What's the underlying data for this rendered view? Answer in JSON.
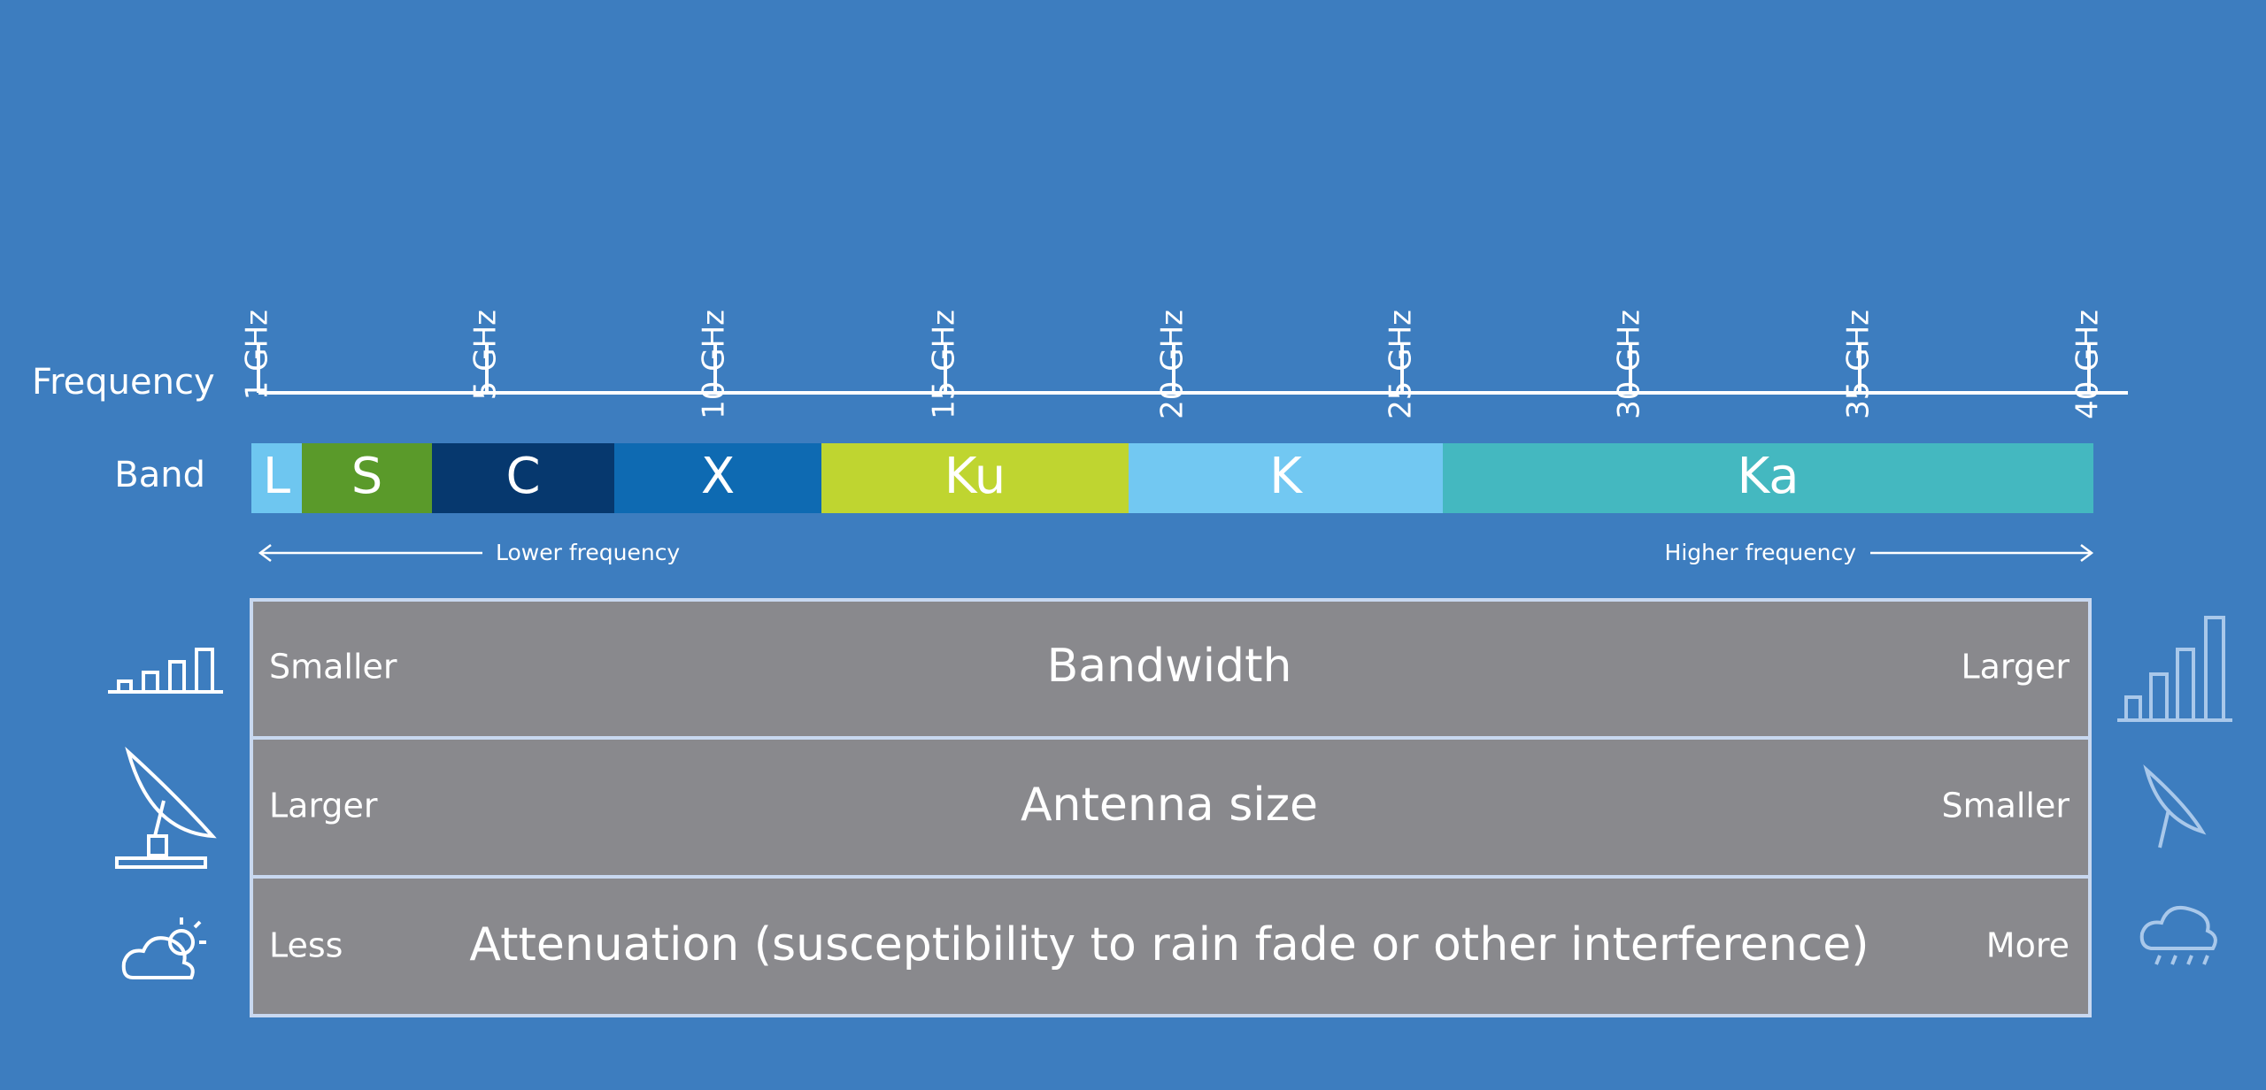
{
  "axis": {
    "label": "Frequency",
    "ticks": [
      "1 GHz",
      "5 GHz",
      "10 GHz",
      "15 GHz",
      "20 GHz",
      "25 GHz",
      "30 GHz",
      "35 GHz",
      "40 GHz"
    ]
  },
  "bands": {
    "label": "Band",
    "items": [
      "L",
      "S",
      "C",
      "X",
      "Ku",
      "K",
      "Ka"
    ]
  },
  "direction": {
    "lower": "Lower frequency",
    "higher": "Higher frequency"
  },
  "rows": [
    {
      "left": "Smaller",
      "label": "Bandwidth",
      "right": "Larger"
    },
    {
      "left": "Larger",
      "label": "Antenna size",
      "right": "Smaller"
    },
    {
      "left": "Less",
      "label": "Attenuation (susceptibility to rain fade or other interference)",
      "right": "More"
    }
  ]
}
